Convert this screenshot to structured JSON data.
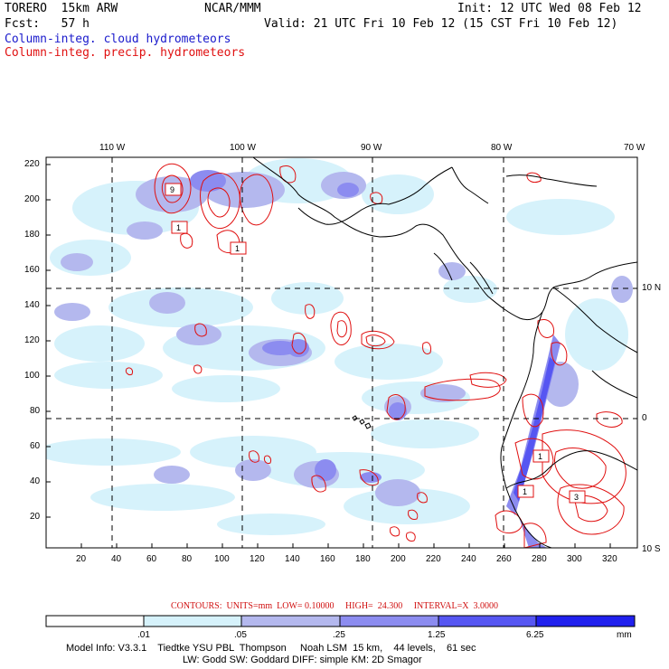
{
  "header": {
    "model": "TORERO  15km ARW",
    "org": "NCAR/MMM",
    "init": "Init: 12 UTC Wed 08 Feb 12",
    "fcst": "Fcst:   57 h",
    "valid": "Valid: 21 UTC Fri 10 Feb 12 (15 CST Fri 10 Feb 12)",
    "field_cloud": "Column-integ. cloud hydrometeors",
    "field_precip": "Column-integ. precip. hydrometeors"
  },
  "map": {
    "lon_labels": [
      "110 W",
      "100 W",
      "90 W",
      "80 W",
      "70 W"
    ],
    "lat_labels": [
      "10 N",
      "0",
      "10 S"
    ],
    "y_ticks": [
      "220",
      "200",
      "180",
      "160",
      "140",
      "120",
      "100",
      "80",
      "60",
      "40",
      "20"
    ],
    "x_ticks": [
      "20",
      "40",
      "60",
      "80",
      "100",
      "120",
      "140",
      "160",
      "180",
      "200",
      "220",
      "240",
      "260",
      "280",
      "300",
      "320"
    ],
    "contour_boxes": [
      "9",
      "1",
      "1",
      "1",
      "1",
      "3"
    ]
  },
  "contours_info": {
    "text": "CONTOURS:  UNITS=mm  LOW= 0.10000     HIGH=  24.300     INTERVAL=X  3.0000"
  },
  "legend": {
    "labels": [
      ".01",
      ".05",
      ".25",
      "1.25",
      "6.25",
      "mm"
    ],
    "colors": [
      "#ffffff",
      "#d6f2fb",
      "#b4b8ee",
      "#8c8cf0",
      "#5656f2",
      "#2020ee"
    ]
  },
  "footer": {
    "line1": "Model Info: V3.3.1    Tiedtke YSU PBL  Thompson     Noah LSM  15 km,    44 levels,    61 sec",
    "line2": "LW: Godd SW: Goddard DIFF: simple KM: 2D Smagor"
  }
}
